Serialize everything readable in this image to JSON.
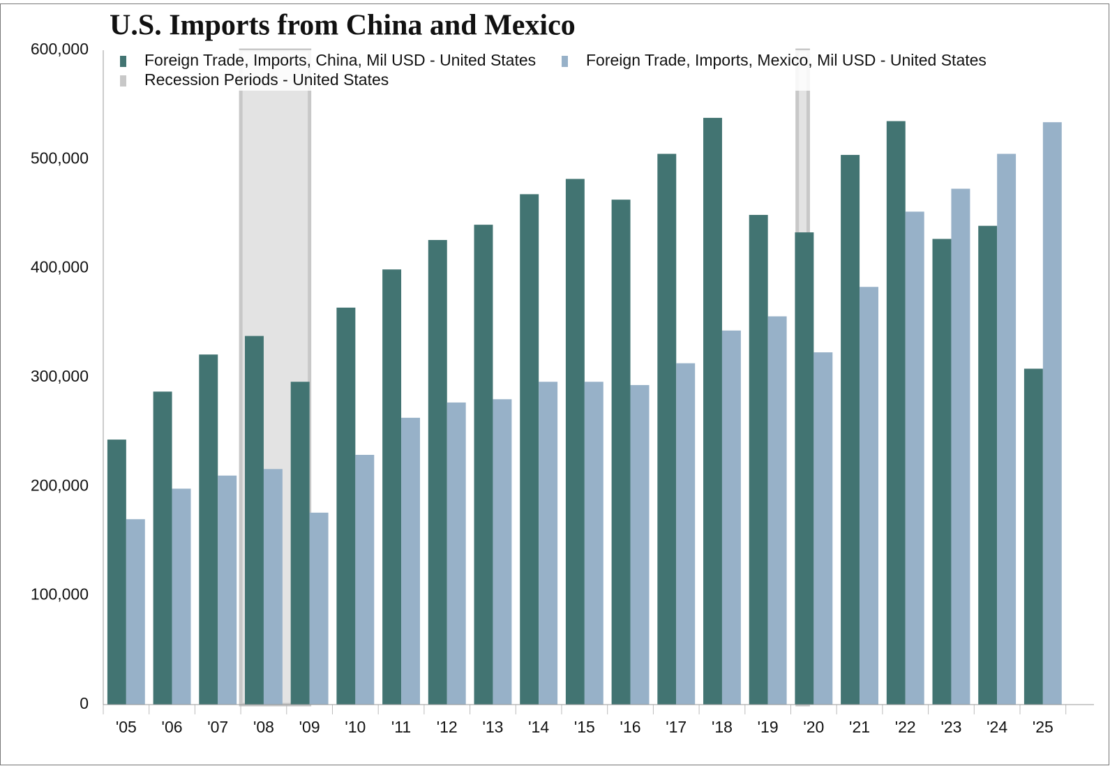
{
  "chart_data": {
    "type": "bar",
    "title": "U.S. Imports from China and Mexico",
    "categories": [
      "'05",
      "'06",
      "'07",
      "'08",
      "'09",
      "'10",
      "'11",
      "'12",
      "'13",
      "'14",
      "'15",
      "'16",
      "'17",
      "'18",
      "'19",
      "'20",
      "'21",
      "'22",
      "'23",
      "'24",
      "'25"
    ],
    "series": [
      {
        "name": "Foreign Trade, Imports, China, Mil USD - United States",
        "color": "#427472",
        "values": [
          243000,
          287000,
          321000,
          338000,
          296000,
          364000,
          399000,
          426000,
          440000,
          468000,
          482000,
          463000,
          505000,
          538000,
          449000,
          433000,
          504000,
          535000,
          427000,
          439000,
          308000
        ]
      },
      {
        "name": "Foreign Trade, Imports, Mexico, Mil USD - United States",
        "color": "#97b1c8",
        "values": [
          170000,
          198000,
          210000,
          216000,
          176000,
          229000,
          263000,
          277000,
          280000,
          296000,
          296000,
          293000,
          313000,
          343000,
          356000,
          323000,
          383000,
          452000,
          473000,
          505000,
          534000
        ]
      }
    ],
    "recession_name": "Recession Periods - United States",
    "recession_color": "#c8c8c8",
    "recessions": [
      {
        "start": 2008.0,
        "end": 2009.5
      },
      {
        "start": 2020.14,
        "end": 2020.38
      }
    ],
    "xlim": [
      2005,
      2026
    ],
    "ylim": [
      0,
      600000
    ],
    "yticks": [
      {
        "value": 0,
        "label": "0"
      },
      {
        "value": 100000,
        "label": "100,000"
      },
      {
        "value": 200000,
        "label": "200,000"
      },
      {
        "value": 300000,
        "label": "300,000"
      },
      {
        "value": 400000,
        "label": "400,000"
      },
      {
        "value": 500000,
        "label": "500,000"
      },
      {
        "value": 600000,
        "label": "600,000"
      }
    ],
    "grid": false
  }
}
